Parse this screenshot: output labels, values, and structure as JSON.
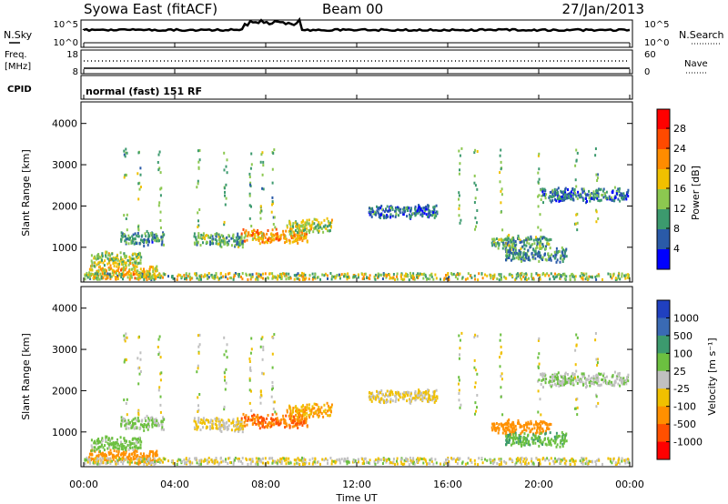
{
  "header": {
    "title": "Syowa East (fitACF)",
    "beam": "Beam 00",
    "date": "27/Jan/2013"
  },
  "status_panels": {
    "nsky_label": "N.Sky",
    "nsearch_label": "N.Search",
    "noise_ticks": [
      "10^5",
      "10^0"
    ],
    "freq_label": "Freq.",
    "freq_unit": "[MHz]",
    "freq_ticks": [
      "18",
      "8"
    ],
    "nave_label": "Nave",
    "nave_ticks": [
      "60",
      "0"
    ],
    "cpid_label": "CPID",
    "cpid_text": "normal (fast) 151 RF"
  },
  "axes": {
    "xlabel": "Time UT",
    "ylabel": "Slant Range [km]",
    "x_ticks": [
      "00:00",
      "04:00",
      "08:00",
      "12:00",
      "16:00",
      "20:00",
      "00:00"
    ],
    "x_range_hours": [
      0,
      24
    ],
    "y_ticks": [
      "1000",
      "2000",
      "3000",
      "4000"
    ],
    "y_range_km": [
      180,
      4500
    ]
  },
  "colorbars": {
    "power": {
      "label": "Power [dB]",
      "ticks": [
        "28",
        "24",
        "20",
        "16",
        "12",
        "8",
        "4"
      ],
      "colors": [
        "#ff0000",
        "#ff4a00",
        "#ff8c00",
        "#f0c000",
        "#8cc850",
        "#3c9a6e",
        "#2a5aa8",
        "#0000ff"
      ]
    },
    "velocity": {
      "label": "Velocity [m s⁻¹]",
      "ticks": [
        "1000",
        "500",
        "100",
        "25",
        "-25",
        "-100",
        "-500",
        "-1000"
      ],
      "colors": [
        "#2040c0",
        "#3a6ab4",
        "#3c9a6e",
        "#6cc040",
        "#c0c0c0",
        "#f0c000",
        "#ff9000",
        "#ff5000",
        "#ff0000"
      ]
    }
  },
  "chart_data": {
    "type": "heatmap",
    "title": "Syowa East (fitACF)",
    "xlabel": "Time UT",
    "ylabel": "Slant Range [km]",
    "xlim": [
      0,
      24
    ],
    "ylim": [
      180,
      4500
    ],
    "series": [
      {
        "name": "Power [dB]",
        "range": [
          0,
          30
        ]
      },
      {
        "name": "Velocity [m s⁻¹]",
        "range": [
          -1000,
          1000
        ]
      }
    ],
    "features": [
      {
        "t_start": 0.2,
        "t_end": 3.2,
        "range_km": 380,
        "power_db": 18,
        "velocity": -200
      },
      {
        "t_start": 0.3,
        "t_end": 2.5,
        "range_km": 700,
        "power_db": 14,
        "velocity": 50
      },
      {
        "t_start": 1.6,
        "t_end": 3.5,
        "range_km": 1200,
        "power_db": 8,
        "velocity": 30
      },
      {
        "t_start": 4.8,
        "t_end": 7.0,
        "range_km": 1150,
        "power_db": 10,
        "velocity": -30
      },
      {
        "t_start": 6.9,
        "t_end": 9.8,
        "range_km": 1250,
        "power_db": 20,
        "velocity": -500
      },
      {
        "t_start": 8.9,
        "t_end": 10.9,
        "range_km": 1500,
        "power_db": 14,
        "velocity": -100
      },
      {
        "t_start": 12.5,
        "t_end": 15.5,
        "range_km": 1850,
        "power_db": 6,
        "velocity": -30
      },
      {
        "t_start": 17.9,
        "t_end": 20.5,
        "range_km": 1100,
        "power_db": 10,
        "velocity": -300
      },
      {
        "t_start": 18.5,
        "t_end": 21.2,
        "range_km": 800,
        "power_db": 8,
        "velocity": 80
      },
      {
        "t_start": 20.0,
        "t_end": 23.9,
        "range_km": 2250,
        "power_db": 6,
        "velocity": 20
      }
    ]
  }
}
